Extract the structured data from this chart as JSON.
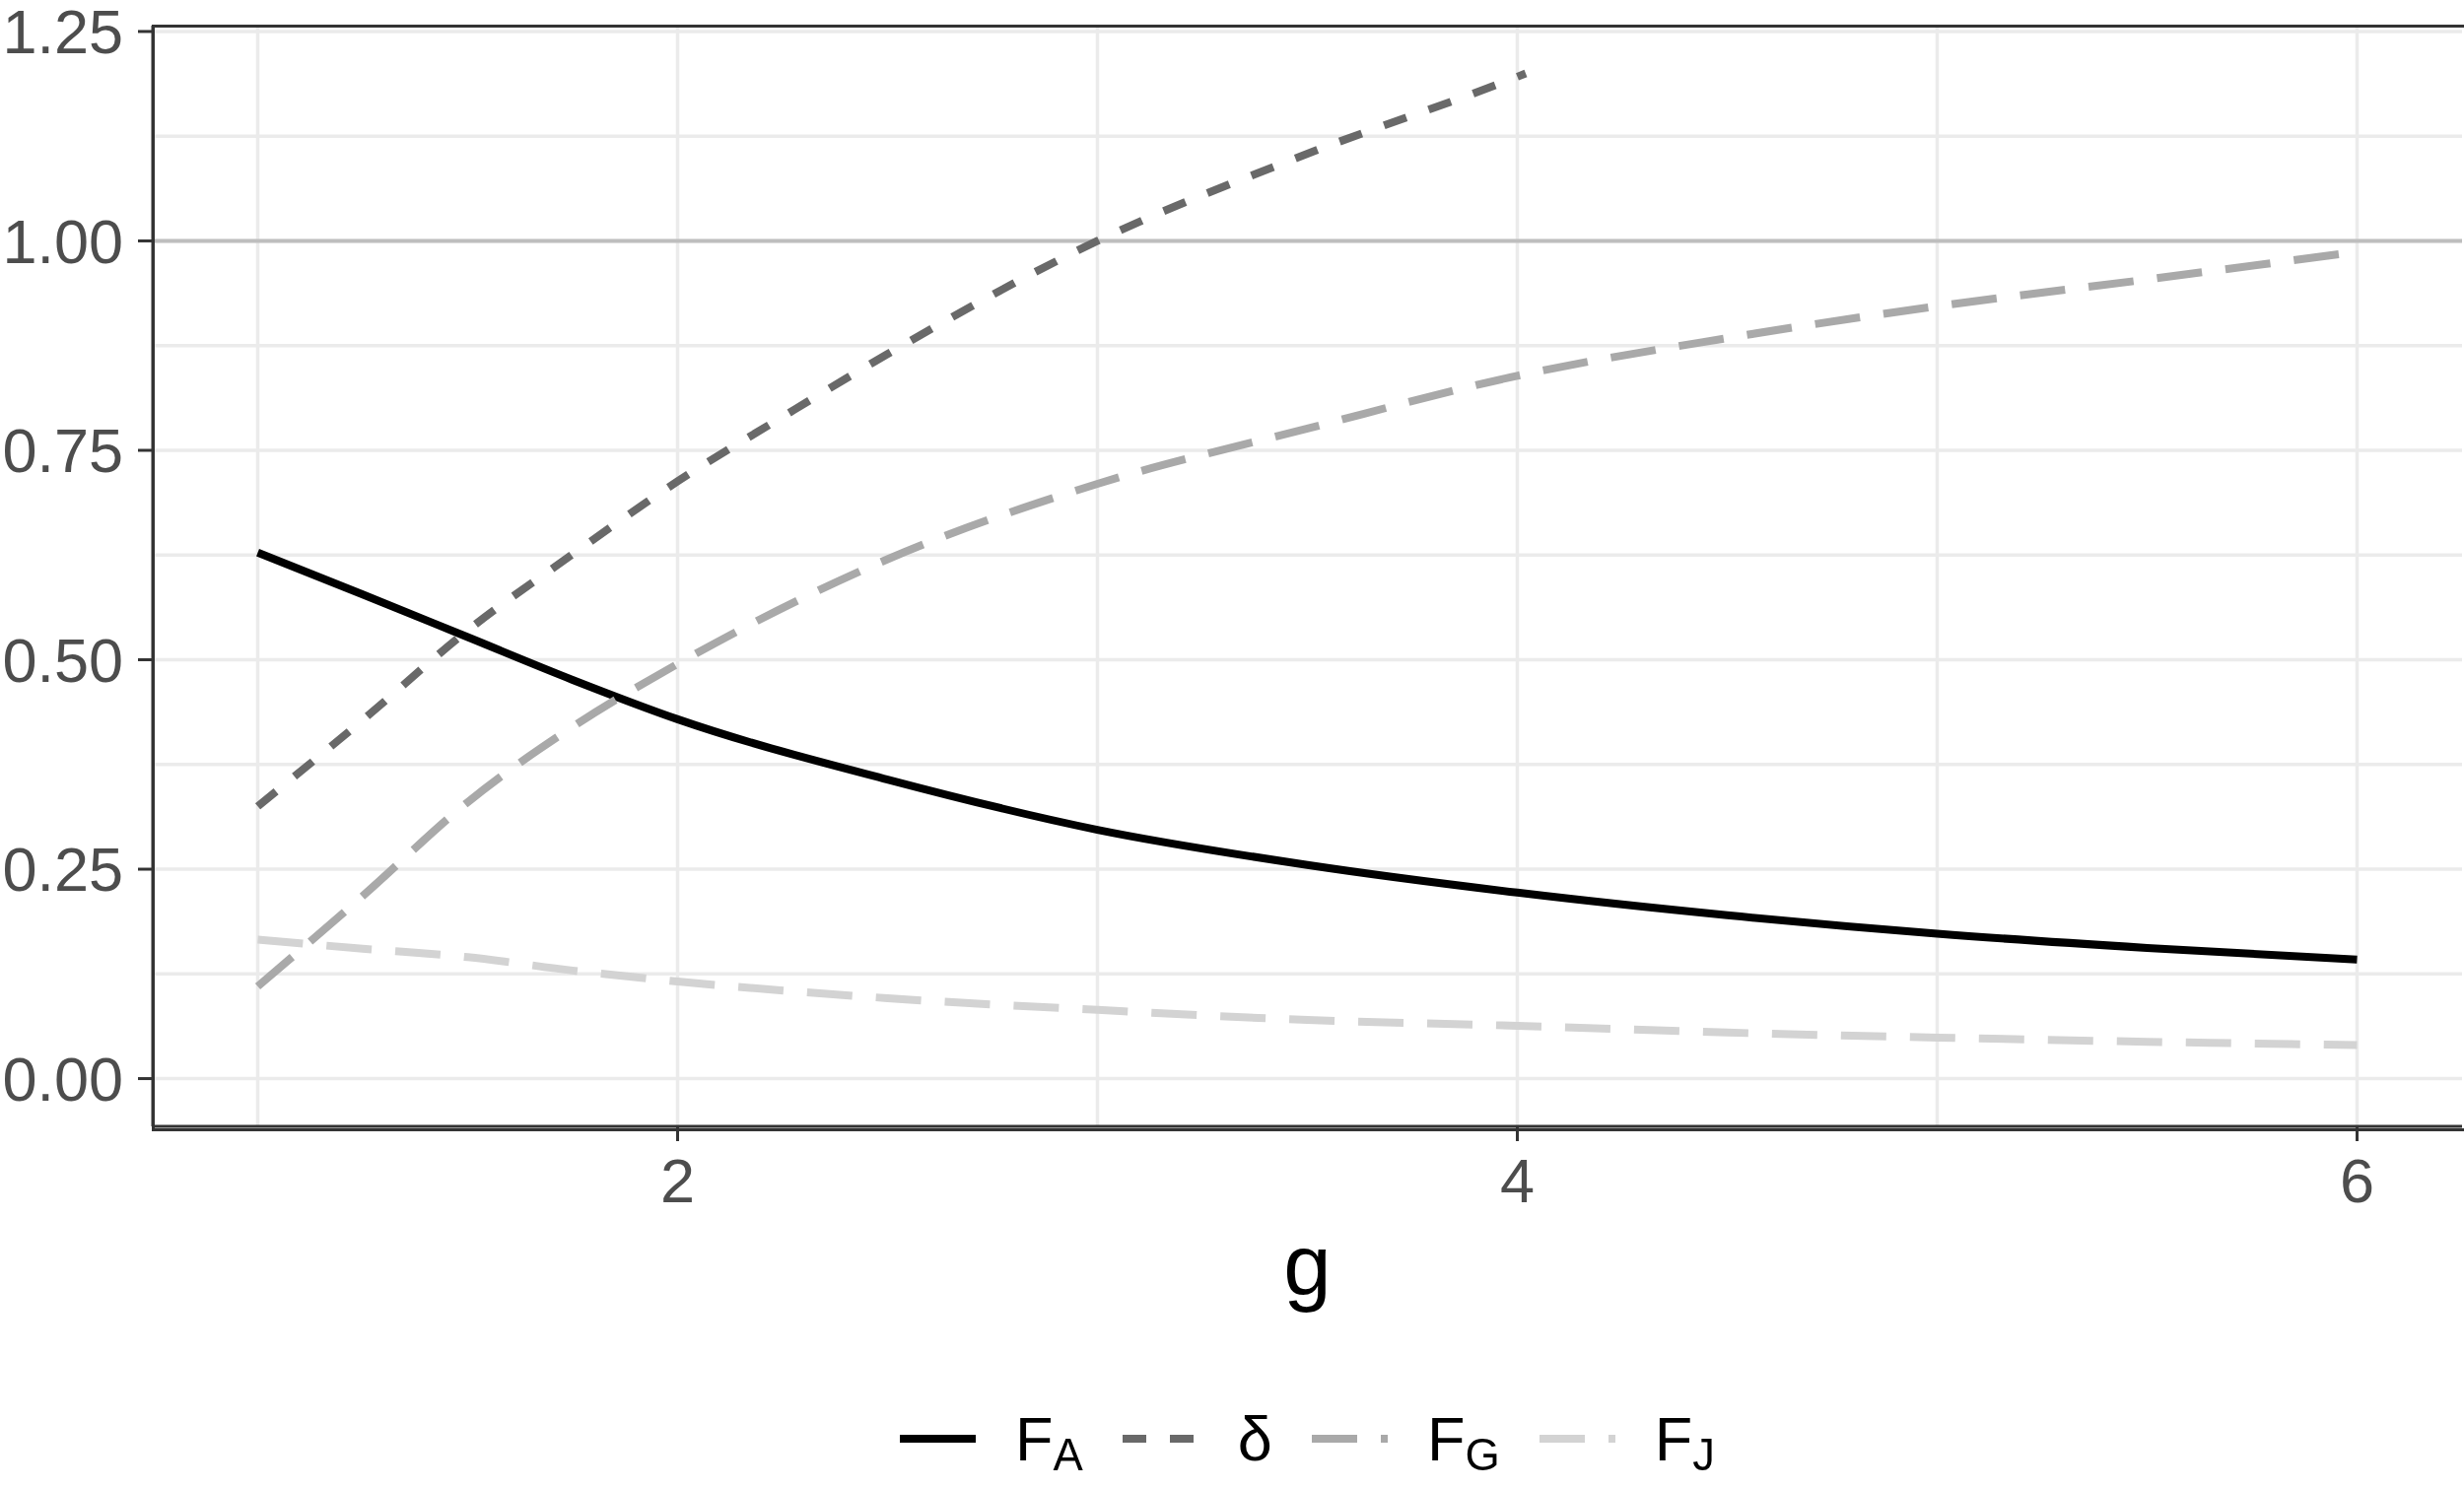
{
  "chart_data": {
    "type": "line",
    "xlabel": "g",
    "x": [
      1,
      1.25,
      1.5,
      1.75,
      2,
      2.5,
      3,
      3.5,
      4,
      4.5,
      5,
      5.5,
      6
    ],
    "series": [
      {
        "name": "F$_{A}$",
        "color": "#000000",
        "line_style": "solid",
        "values": [
          0.628,
          0.578,
          0.527,
          0.476,
          0.429,
          0.357,
          0.297,
          0.255,
          0.222,
          0.195,
          0.173,
          0.156,
          0.142
        ]
      },
      {
        "name": "δ",
        "color": "#696969",
        "line_style": "dotted",
        "x": [
          1,
          1.25,
          1.5,
          1.75,
          2,
          2.25,
          2.5,
          3,
          3.5,
          4,
          4.02
        ],
        "values": [
          0.325,
          0.428,
          0.535,
          0.626,
          0.713,
          0.79,
          0.865,
          1.0,
          1.104,
          1.196,
          1.2
        ]
      },
      {
        "name": "F$_{G}$",
        "color": "#a9a9a9",
        "line_style": "dashed",
        "values": [
          0.11,
          0.218,
          0.33,
          0.42,
          0.495,
          0.62,
          0.71,
          0.776,
          0.839,
          0.884,
          0.922,
          0.954,
          0.987
        ]
      },
      {
        "name": "F$_{J}$",
        "color": "#d3d3d3",
        "line_style": "dashed",
        "values": [
          0.166,
          0.155,
          0.145,
          0.129,
          0.116,
          0.096,
          0.082,
          0.07,
          0.063,
          0.055,
          0.049,
          0.044,
          0.04
        ]
      }
    ],
    "xlim": [
      0.75,
      6.25
    ],
    "xticks": [
      2,
      4,
      6
    ],
    "ylim": [
      -0.057,
      1.257
    ],
    "yticks": [
      {
        "value": 0,
        "label": "0.00"
      },
      0.25,
      {
        "value": 0.5,
        "label": "0.50"
      },
      0.75,
      {
        "value": 1,
        "label": "1.00"
      },
      1.25
    ],
    "ref_lines": [
      {
        "axis": "y",
        "value": 1,
        "color": "#bebebe"
      }
    ],
    "grid": true,
    "legend": "bottom"
  }
}
